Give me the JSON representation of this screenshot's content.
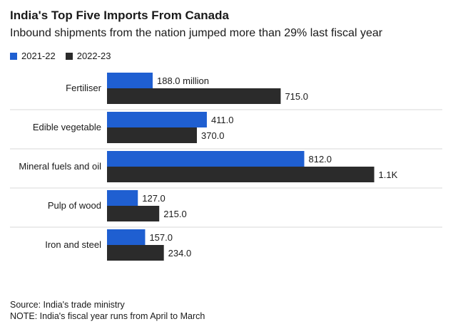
{
  "header": {
    "title": "India's Top Five Imports From Canada",
    "subtitle": "Inbound shipments from the nation jumped more than 29% last fiscal year"
  },
  "colors": {
    "series_2021": "#1f5fd1",
    "series_2022": "#2b2b2b",
    "text": "#1a1a1a",
    "divider": "#d9d9d9"
  },
  "chart_data": {
    "type": "bar",
    "orientation": "horizontal",
    "categories": [
      "Fertiliser",
      "Edible vegetable",
      "Mineral fuels and oil",
      "Pulp of wood",
      "Iron and steel"
    ],
    "series": [
      {
        "name": "2021-22",
        "values": [
          188.0,
          411.0,
          812.0,
          127.0,
          157.0
        ],
        "labels": [
          "188.0 million",
          "411.0",
          "812.0",
          "127.0",
          "157.0"
        ]
      },
      {
        "name": "2022-23",
        "values": [
          715.0,
          370.0,
          1100.0,
          215.0,
          234.0
        ],
        "labels": [
          "715.0",
          "370.0",
          "1.1K",
          "215.0",
          "234.0"
        ]
      }
    ],
    "legend_position": "top-left",
    "grid": false
  },
  "footer": {
    "source": "Source: India's trade ministry",
    "note": "NOTE: India's fiscal year runs from April to March"
  }
}
